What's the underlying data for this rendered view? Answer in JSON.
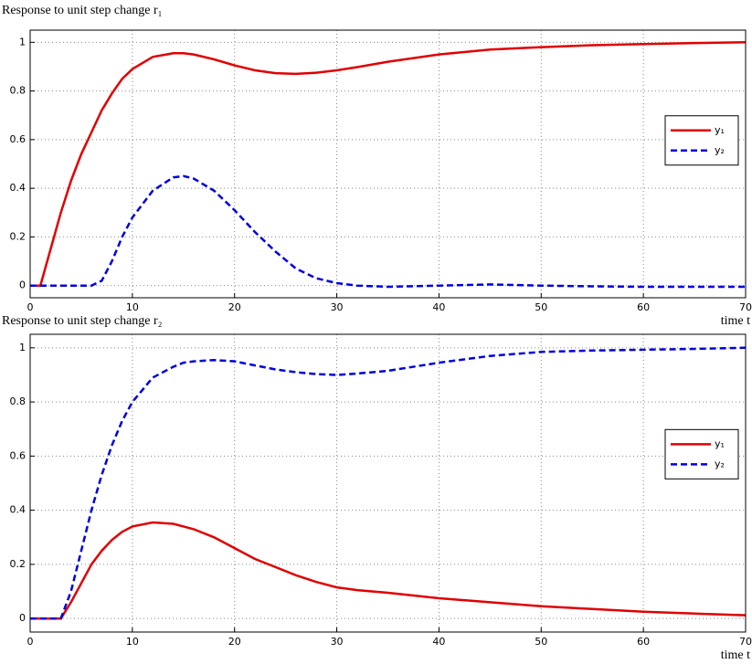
{
  "chart_data": [
    {
      "type": "line",
      "title": "Response to unit step change r₁",
      "x_label": "time t",
      "x": [
        0,
        1,
        2,
        3,
        4,
        5,
        6,
        7,
        8,
        9,
        10,
        12,
        14,
        15,
        16,
        18,
        20,
        22,
        24,
        26,
        28,
        30,
        32,
        35,
        40,
        45,
        50,
        55,
        60,
        65,
        70
      ],
      "series": [
        {
          "name": "y₁",
          "color": "#e00000",
          "style": "solid",
          "values": [
            0,
            0,
            0.15,
            0.3,
            0.43,
            0.54,
            0.63,
            0.72,
            0.79,
            0.85,
            0.89,
            0.94,
            0.955,
            0.955,
            0.95,
            0.93,
            0.905,
            0.885,
            0.873,
            0.87,
            0.875,
            0.885,
            0.898,
            0.92,
            0.95,
            0.97,
            0.98,
            0.988,
            0.993,
            0.997,
            1.0
          ]
        },
        {
          "name": "y₂",
          "color": "#0000e0",
          "style": "dashed",
          "values": [
            0,
            0,
            0,
            0,
            0,
            0,
            0,
            0.02,
            0.1,
            0.2,
            0.28,
            0.39,
            0.445,
            0.45,
            0.44,
            0.39,
            0.31,
            0.22,
            0.14,
            0.07,
            0.03,
            0.01,
            0,
            -0.005,
            0,
            0.005,
            0,
            -0.003,
            -0.005,
            -0.005,
            -0.005
          ]
        }
      ],
      "xlim": [
        0,
        70
      ],
      "xticks": [
        0,
        10,
        20,
        30,
        40,
        50,
        60,
        70
      ],
      "ylim": [
        -0.05,
        1.05
      ],
      "yticks": [
        0,
        0.2,
        0.4,
        0.6,
        0.8,
        1
      ],
      "grid": true,
      "legend": "right"
    },
    {
      "type": "line",
      "title": "Response to unit step change r₂",
      "x_label": "time t",
      "x": [
        0,
        1,
        2,
        3,
        4,
        5,
        6,
        7,
        8,
        9,
        10,
        12,
        14,
        15,
        16,
        18,
        20,
        22,
        24,
        26,
        28,
        30,
        32,
        35,
        40,
        45,
        50,
        55,
        60,
        65,
        70
      ],
      "series": [
        {
          "name": "y₁",
          "color": "#e00000",
          "style": "solid",
          "values": [
            0,
            0,
            0,
            0,
            0.06,
            0.13,
            0.2,
            0.25,
            0.29,
            0.32,
            0.34,
            0.355,
            0.35,
            0.34,
            0.33,
            0.3,
            0.26,
            0.22,
            0.19,
            0.16,
            0.135,
            0.115,
            0.105,
            0.095,
            0.075,
            0.06,
            0.045,
            0.035,
            0.025,
            0.018,
            0.012
          ]
        },
        {
          "name": "y₂",
          "color": "#0000e0",
          "style": "dashed",
          "values": [
            0,
            0,
            0,
            0,
            0.1,
            0.25,
            0.4,
            0.53,
            0.64,
            0.73,
            0.8,
            0.89,
            0.93,
            0.945,
            0.95,
            0.955,
            0.95,
            0.935,
            0.92,
            0.91,
            0.903,
            0.9,
            0.905,
            0.915,
            0.945,
            0.97,
            0.985,
            0.99,
            0.993,
            0.996,
            1.0
          ]
        }
      ],
      "xlim": [
        0,
        70
      ],
      "xticks": [
        0,
        10,
        20,
        30,
        40,
        50,
        60,
        70
      ],
      "ylim": [
        -0.05,
        1.05
      ],
      "yticks": [
        0,
        0.2,
        0.4,
        0.6,
        0.8,
        1
      ],
      "grid": true,
      "legend": "right"
    }
  ]
}
